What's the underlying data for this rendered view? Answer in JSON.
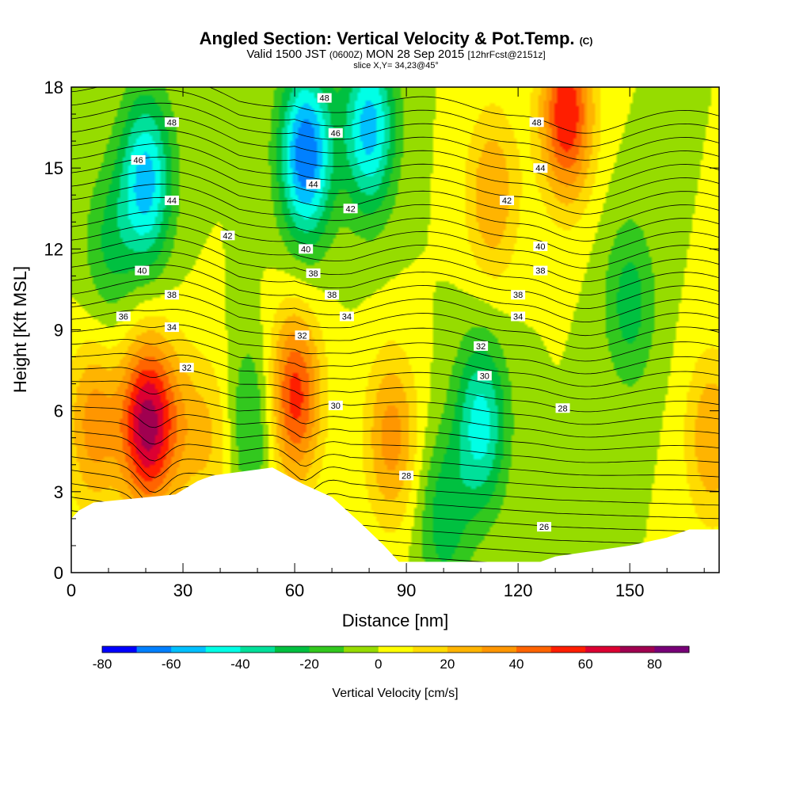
{
  "header": {
    "title": "Angled Section: Vertical Velocity & Pot.Temp.",
    "title_unit": "(C)",
    "valid_prefix": "Valid 1500 JST",
    "valid_utc": "(0600Z)",
    "valid_date": "MON 28 Sep 2015",
    "forecast": "[12hrFcst@2151z]",
    "slice": "slice X,Y= 34,23@45°"
  },
  "chart_data": {
    "type": "heatmap",
    "title": "Angled Section: Vertical Velocity & Pot.Temp.",
    "xlabel": "Distance [nm]",
    "ylabel": "Height [Kft MSL]",
    "xlim": [
      0,
      174
    ],
    "ylim": [
      0,
      18
    ],
    "x_ticks": [
      "0",
      "30",
      "60",
      "90",
      "120",
      "150"
    ],
    "x_tick_values": [
      0,
      30,
      60,
      90,
      120,
      150
    ],
    "y_ticks": [
      "0",
      "3",
      "6",
      "9",
      "12",
      "15",
      "18"
    ],
    "y_tick_values": [
      0,
      3,
      6,
      9,
      12,
      15,
      18
    ],
    "colorbar": {
      "label": "Vertical Velocity [cm/s]",
      "range": [
        -80,
        90
      ],
      "tick_labels": [
        "-80",
        "-60",
        "-40",
        "-20",
        "0",
        "20",
        "40",
        "60",
        "80"
      ],
      "tick_values": [
        -80,
        -60,
        -40,
        -20,
        0,
        20,
        40,
        60,
        80
      ],
      "colors": [
        "#0000ff",
        "#0080ff",
        "#00c0ff",
        "#00ffe6",
        "#00e09a",
        "#00c040",
        "#32c81e",
        "#96dc00",
        "#ffff00",
        "#ffdc00",
        "#ffb400",
        "#ff9600",
        "#ff6400",
        "#ff1e00",
        "#dc0032",
        "#a00050",
        "#780078"
      ]
    },
    "velocity_centers": [
      {
        "x": 20,
        "y": 5.5,
        "w": 70,
        "note": "updraft"
      },
      {
        "x": 60,
        "y": 6.5,
        "w": 55,
        "note": "updraft"
      },
      {
        "x": 6,
        "y": 5.5,
        "w": 35,
        "note": "updraft"
      },
      {
        "x": 86,
        "y": 5.0,
        "w": 35,
        "note": "updraft"
      },
      {
        "x": 28,
        "y": 5.5,
        "w": 20,
        "note": "updraft"
      },
      {
        "x": 38,
        "y": 5.0,
        "w": 20,
        "note": "updraft"
      },
      {
        "x": 133,
        "y": 17.0,
        "w": 60,
        "note": "updraft"
      },
      {
        "x": 113,
        "y": 14.0,
        "w": 30,
        "note": "updraft"
      },
      {
        "x": 172,
        "y": 5.0,
        "w": 30,
        "note": "updraft"
      },
      {
        "x": 20,
        "y": 14.5,
        "w": -55,
        "note": "downdraft"
      },
      {
        "x": 63,
        "y": 15.5,
        "w": -70,
        "note": "downdraft"
      },
      {
        "x": 80,
        "y": 16.5,
        "w": -55,
        "note": "downdraft"
      },
      {
        "x": 110,
        "y": 5.5,
        "w": -45,
        "note": "downdraft"
      },
      {
        "x": 150,
        "y": 10.0,
        "w": -25,
        "note": "downdraft"
      },
      {
        "x": 100,
        "y": 2.0,
        "w": -25,
        "note": "downdraft"
      },
      {
        "x": 48,
        "y": 5.5,
        "w": -25,
        "note": "downdraft"
      },
      {
        "x": 10,
        "y": 12.0,
        "w": -20,
        "note": "downdraft"
      }
    ],
    "theta_contour_labels": [
      {
        "text": "48",
        "x": 27,
        "y": 16.7
      },
      {
        "text": "48",
        "x": 68,
        "y": 17.6
      },
      {
        "text": "48",
        "x": 125,
        "y": 16.7
      },
      {
        "text": "46",
        "x": 18,
        "y": 15.3
      },
      {
        "text": "46",
        "x": 71,
        "y": 16.3
      },
      {
        "text": "44",
        "x": 27,
        "y": 13.8
      },
      {
        "text": "44",
        "x": 65,
        "y": 14.4
      },
      {
        "text": "44",
        "x": 126,
        "y": 15.0
      },
      {
        "text": "42",
        "x": 42,
        "y": 12.5
      },
      {
        "text": "42",
        "x": 75,
        "y": 13.5
      },
      {
        "text": "42",
        "x": 117,
        "y": 13.8
      },
      {
        "text": "40",
        "x": 19,
        "y": 11.2
      },
      {
        "text": "40",
        "x": 63,
        "y": 12.0
      },
      {
        "text": "40",
        "x": 126,
        "y": 12.1
      },
      {
        "text": "38",
        "x": 27,
        "y": 10.3
      },
      {
        "text": "38",
        "x": 65,
        "y": 11.1
      },
      {
        "text": "38",
        "x": 126,
        "y": 11.2
      },
      {
        "text": "38",
        "x": 70,
        "y": 10.3
      },
      {
        "text": "38",
        "x": 120,
        "y": 10.3
      },
      {
        "text": "36",
        "x": 14,
        "y": 9.5
      },
      {
        "text": "34",
        "x": 27,
        "y": 9.1
      },
      {
        "text": "34",
        "x": 74,
        "y": 9.5
      },
      {
        "text": "34",
        "x": 120,
        "y": 9.5
      },
      {
        "text": "32",
        "x": 31,
        "y": 7.6
      },
      {
        "text": "32",
        "x": 62,
        "y": 8.8
      },
      {
        "text": "32",
        "x": 110,
        "y": 8.4
      },
      {
        "text": "30",
        "x": 71,
        "y": 6.2
      },
      {
        "text": "30",
        "x": 111,
        "y": 7.3
      },
      {
        "text": "28",
        "x": 90,
        "y": 3.6
      },
      {
        "text": "28",
        "x": 132,
        "y": 6.1
      },
      {
        "text": "26",
        "x": 127,
        "y": 1.7
      }
    ]
  }
}
